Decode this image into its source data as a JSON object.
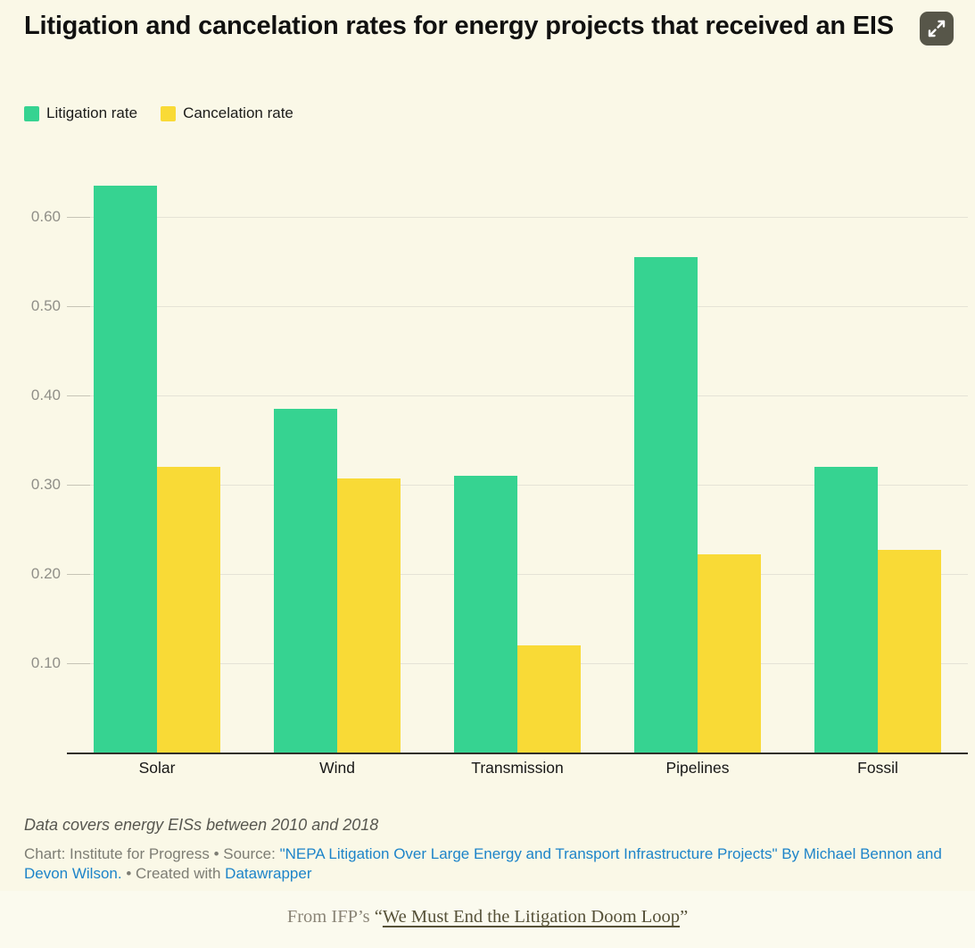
{
  "header": {
    "title": "Litigation and cancelation rates for energy projects that received an EIS"
  },
  "toolbar": {
    "expand_icon": "expand-arrows-icon"
  },
  "chart_data": {
    "type": "bar",
    "title": "Litigation and cancelation rates for energy projects that received an EIS",
    "categories": [
      "Solar",
      "Wind",
      "Transmission",
      "Pipelines",
      "Fossil"
    ],
    "series": [
      {
        "name": "Litigation rate",
        "color": "#36d391",
        "values": [
          0.635,
          0.385,
          0.31,
          0.555,
          0.32
        ]
      },
      {
        "name": "Cancelation rate",
        "color": "#f9da36",
        "values": [
          0.32,
          0.307,
          0.12,
          0.222,
          0.227
        ]
      }
    ],
    "y_ticks": [
      {
        "value": 0.1,
        "label": "0.10"
      },
      {
        "value": 0.2,
        "label": "0.20"
      },
      {
        "value": 0.3,
        "label": "0.30"
      },
      {
        "value": 0.4,
        "label": "0.40"
      },
      {
        "value": 0.5,
        "label": "0.50"
      },
      {
        "value": 0.6,
        "label": "0.60"
      }
    ],
    "ylim": [
      0,
      0.65
    ],
    "xlabel": "",
    "ylabel": "",
    "grid": "horizontal",
    "legend_position": "top-left"
  },
  "notes": {
    "footnote": "Data covers energy EISs between 2010 and 2018"
  },
  "byline": {
    "chart_credit": "Chart: Institute for Progress • Source: ",
    "source_link": "\"NEPA Litigation Over Large Energy and Transport Infrastructure Projects\" By Michael Bennon and Devon Wilson.",
    "created_with": " • Created with ",
    "tool_link": "Datawrapper"
  },
  "caption": {
    "prefix": "From IFP’s ",
    "open_quote": "“",
    "link_text": "We Must End the Litigation Doom Loop",
    "close_quote": "”"
  },
  "colors": {
    "chart_background": "#faf8e7",
    "page_background": "#fbfaee",
    "litigation_green": "#36d391",
    "cancelation_yellow": "#f9da36",
    "link_blue": "#1d84c9",
    "axis": "#31302a"
  }
}
